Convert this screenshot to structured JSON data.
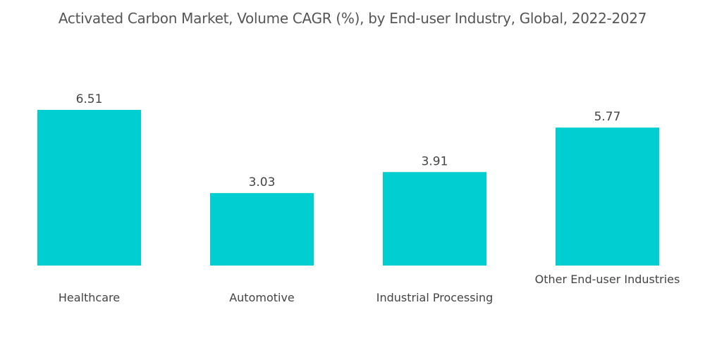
{
  "chart_data": {
    "type": "bar",
    "title": "Activated Carbon Market, Volume CAGR (%), by End-user Industry, Global, 2022-2027",
    "categories": [
      "Healthcare",
      "Automotive",
      "Industrial Processing",
      "Other End-user Industries"
    ],
    "values": [
      6.51,
      3.03,
      3.91,
      5.77
    ],
    "value_labels": [
      "6.51",
      "3.03",
      "3.91",
      "5.77"
    ],
    "xlabel": "",
    "ylabel": "",
    "ylim": [
      0,
      6.51
    ],
    "grid": false,
    "legend": "none",
    "bar_color": "#00CED1"
  }
}
